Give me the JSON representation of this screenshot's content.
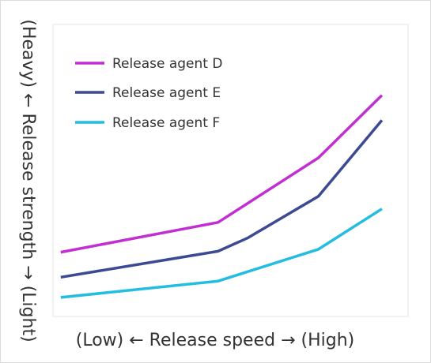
{
  "chart_data": {
    "type": "line",
    "title": "",
    "xlabel": "(Low) ← Release speed → (High)",
    "ylabel": "(Heavy) ← Release strength → (Light)",
    "grid": false,
    "legend_position": "top-left",
    "xlim": [
      0,
      10
    ],
    "ylim": [
      0,
      10
    ],
    "series": [
      {
        "name": "Release agent D",
        "color": "#c12fd2",
        "x": [
          0.5,
          5.2,
          8.2,
          10.1
        ],
        "y": [
          2.05,
          3.6,
          6.95,
          10.2
        ]
      },
      {
        "name": "Release agent E",
        "color": "#3c4a94",
        "x": [
          0.5,
          5.2,
          6.1,
          8.2,
          10.1
        ],
        "y": [
          0.75,
          2.1,
          2.8,
          4.95,
          8.9
        ]
      },
      {
        "name": "Release agent F",
        "color": "#22bde0",
        "x": [
          0.5,
          5.2,
          8.2,
          10.1
        ],
        "y": [
          -0.3,
          0.55,
          2.2,
          4.3
        ]
      }
    ]
  }
}
